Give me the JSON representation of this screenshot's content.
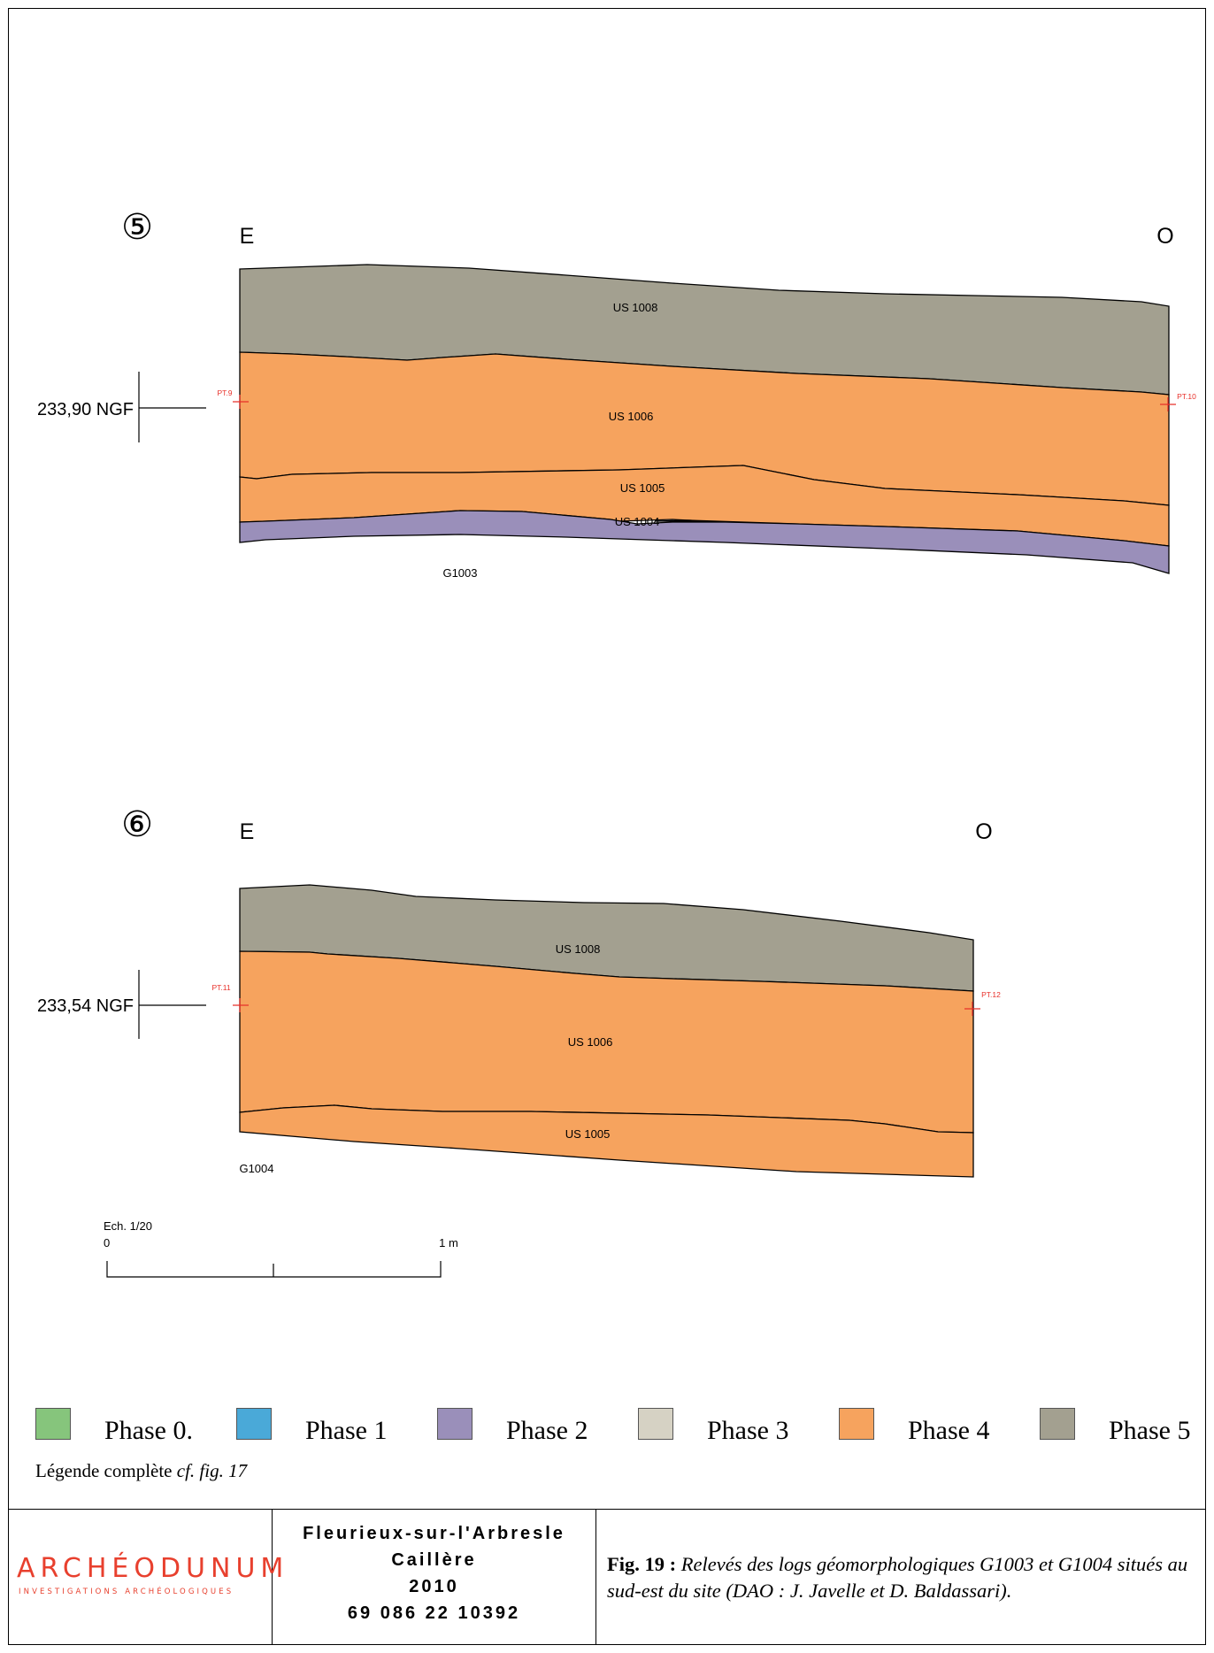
{
  "sections": [
    {
      "number": "⑤",
      "left_label": "E",
      "right_label": "O",
      "elevation": "233,90 NGF",
      "point_left": "PT.9",
      "point_right": "PT.10",
      "log_id": "G1003",
      "layers": [
        "US 1008",
        "US 1006",
        "US 1005",
        "US 1004"
      ]
    },
    {
      "number": "⑥",
      "left_label": "E",
      "right_label": "O",
      "elevation": "233,54 NGF",
      "point_left": "PT.11",
      "point_right": "PT.12",
      "log_id": "G1004",
      "layers": [
        "US 1008",
        "US 1006",
        "US 1005"
      ]
    }
  ],
  "scale": {
    "title": "Ech. 1/20",
    "start": "0",
    "end": "1 m"
  },
  "legend": {
    "items": [
      {
        "label": "Phase 0.",
        "color": "#86c57c"
      },
      {
        "label": "Phase 1",
        "color": "#4aa9d8"
      },
      {
        "label": "Phase 2",
        "color": "#9a8fba"
      },
      {
        "label": "Phase 3",
        "color": "#d6d2c4"
      },
      {
        "label": "Phase 4",
        "color": "#f6a35e"
      },
      {
        "label": "Phase 5",
        "color": "#a3a090"
      }
    ],
    "note_prefix": "Légende complète ",
    "note_ref": "cf. fig. 17"
  },
  "footer": {
    "logo_text": "ARCHÉODUNUM",
    "logo_sub": "INVESTIGATIONS ARCHÉOLOGIQUES",
    "site": "Fleurieux-sur-l'Arbresle",
    "place": "Caillère",
    "year": "2010",
    "code": "69 086 22 10392",
    "fig_label": "Fig. 19 :",
    "caption": "Relevés des logs géomorphologiques G1003 et G1004 situés au sud-est du site (DAO : J. Javelle et D. Baldassari)."
  },
  "colors": {
    "phase5": "#a3a090",
    "phase4": "#f6a35e",
    "phase2": "#9a8fba",
    "marker": "#e8302a"
  }
}
